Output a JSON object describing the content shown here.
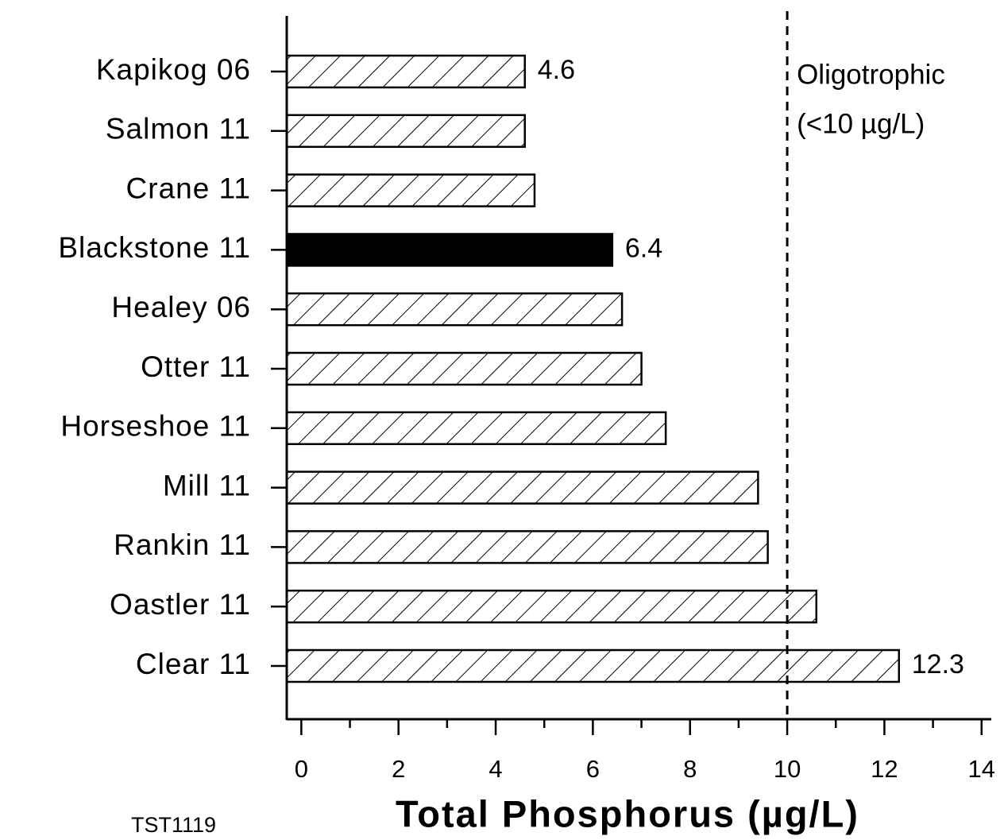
{
  "chart_data": {
    "type": "barh",
    "categories": [
      "Kapikog 06",
      "Salmon 11",
      "Crane 11",
      "Blackstone 11",
      "Healey 06",
      "Otter 11",
      "Horseshoe 11",
      "Mill 11",
      "Rankin 11",
      "Oastler 11",
      "Clear 11"
    ],
    "values": [
      4.6,
      4.6,
      4.8,
      6.4,
      6.6,
      7.0,
      7.5,
      9.4,
      9.6,
      10.6,
      12.3
    ],
    "value_labels": [
      "4.6",
      null,
      null,
      "6.4",
      null,
      null,
      null,
      null,
      null,
      null,
      "12.3"
    ],
    "bar_styles": [
      "hatch",
      "hatch",
      "hatch",
      "solid",
      "hatch",
      "hatch",
      "hatch",
      "hatch",
      "hatch",
      "hatch",
      "hatch"
    ],
    "color": "#000000",
    "xlim": [
      -0.3,
      14.2
    ],
    "xticks": [
      0,
      2,
      4,
      6,
      8,
      10,
      12,
      14
    ],
    "xminor_ticks": [
      1,
      3,
      5,
      7,
      9,
      11,
      13
    ],
    "xlabel": "Total Phosphorus (µg/L)",
    "reference_line": {
      "value": 10,
      "style": "dashed",
      "label_lines": [
        "Oligotrophic",
        "(<10  µg/L)"
      ]
    },
    "footnote": "TST1119"
  }
}
